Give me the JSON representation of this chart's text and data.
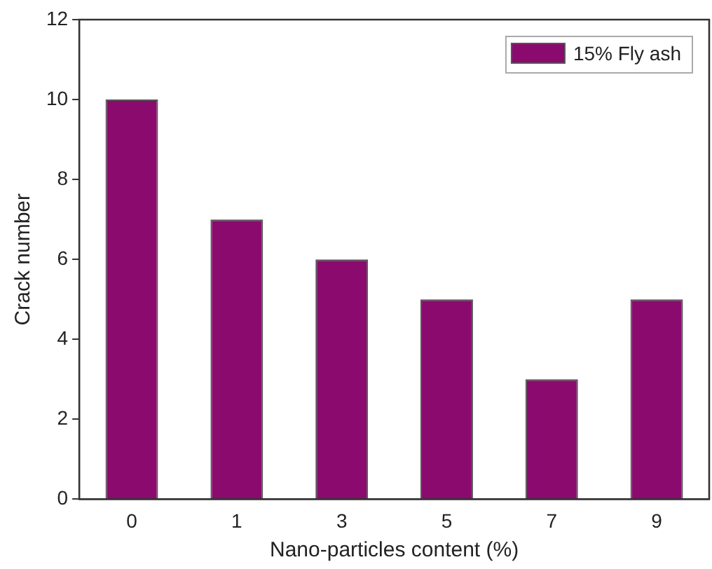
{
  "chart_data": {
    "type": "bar",
    "xlabel": "Nano-particles content (%)",
    "ylabel": "Crack number",
    "categories": [
      "0",
      "1",
      "3",
      "5",
      "7",
      "9"
    ],
    "series": [
      {
        "name": "15% Fly ash",
        "color": "#8b0a6e",
        "values": [
          10,
          7,
          6,
          5,
          3,
          5
        ]
      }
    ],
    "ylim": [
      0,
      12
    ],
    "yticks": [
      0,
      2,
      4,
      6,
      8,
      10,
      12
    ],
    "grid": false,
    "legend": "top right"
  }
}
